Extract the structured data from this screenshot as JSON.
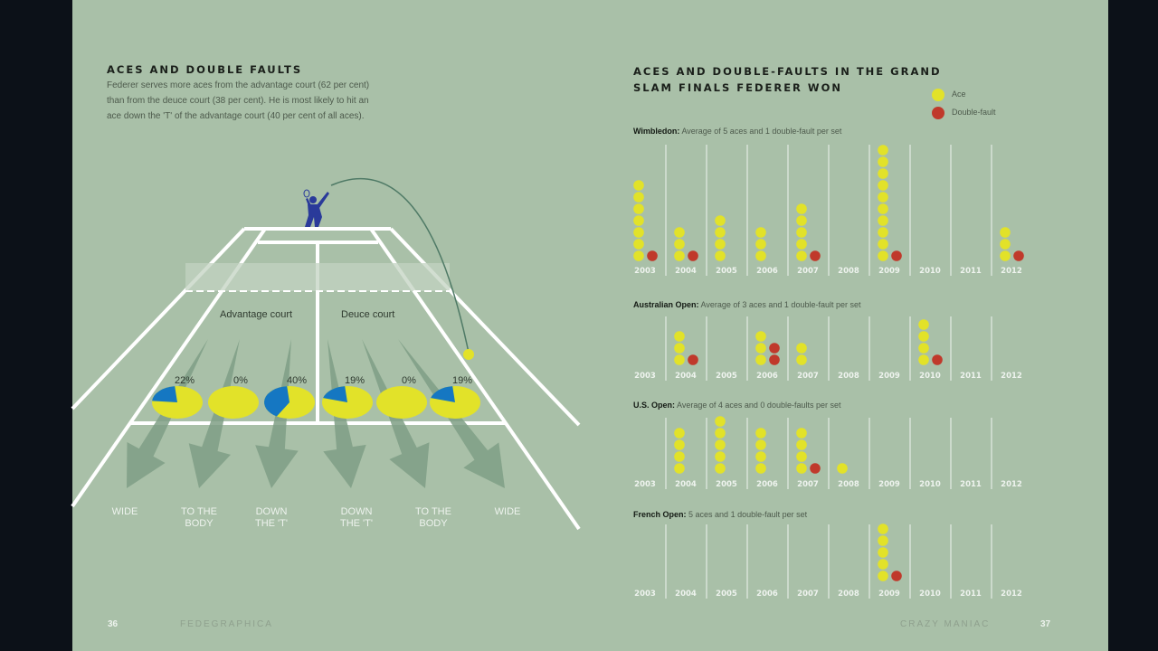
{
  "left": {
    "title": "ACES AND DOUBLE FAULTS",
    "body": "Federer serves more aces from the advantage court (62 per cent) than from the deuce court (38 per cent). He is most likely to hit an ace down the 'T' of the advantage court (40 per cent of all aces).",
    "court_labels": [
      "Advantage court",
      "Deuce court"
    ],
    "pies": [
      {
        "label": "22%",
        "value": 22
      },
      {
        "label": "0%",
        "value": 0
      },
      {
        "label": "40%",
        "value": 40
      },
      {
        "label": "19%",
        "value": 19
      },
      {
        "label": "0%",
        "value": 0
      },
      {
        "label": "19%",
        "value": 19
      }
    ],
    "directions": [
      [
        "WIDE",
        ""
      ],
      [
        "TO THE",
        "BODY"
      ],
      [
        "DOWN",
        "THE 'T'"
      ],
      [
        "DOWN",
        "THE 'T'"
      ],
      [
        "TO THE",
        "BODY"
      ],
      [
        "WIDE",
        ""
      ]
    ]
  },
  "right": {
    "title_line1": "ACES AND DOUBLE-FAULTS IN THE GRAND",
    "title_line2": "SLAM FINALS FEDERER WON",
    "legend": {
      "ace": "Ace",
      "df": "Double-fault"
    }
  },
  "colors": {
    "ace": "#e2e229",
    "df": "#c0392b",
    "pie_blue": "#1577c2",
    "bg": "#a9c0a8",
    "player": "#2a3a9a"
  },
  "chart_data": {
    "type": "dot-matrix",
    "years": [
      "2003",
      "2004",
      "2005",
      "2006",
      "2007",
      "2008",
      "2009",
      "2010",
      "2011",
      "2012"
    ],
    "series": [
      {
        "name": "Wimbledon:",
        "note": "Average of 5 aces and 1 double-fault per set",
        "aces": [
          7,
          3,
          4,
          3,
          5,
          0,
          10,
          0,
          0,
          3
        ],
        "double_faults": [
          1,
          1,
          0,
          0,
          1,
          0,
          1,
          0,
          0,
          1
        ]
      },
      {
        "name": "Australian Open:",
        "note": "Average of 3 aces and 1 double-fault per set",
        "aces": [
          0,
          3,
          0,
          3,
          2,
          0,
          0,
          4,
          0,
          0
        ],
        "double_faults": [
          0,
          1,
          0,
          2,
          0,
          0,
          0,
          1,
          0,
          0
        ]
      },
      {
        "name": "U.S. Open:",
        "note": "Average of 4 aces and 0 double-faults per set",
        "aces": [
          0,
          4,
          5,
          4,
          4,
          1,
          0,
          0,
          0,
          0
        ],
        "double_faults": [
          0,
          0,
          0,
          0,
          1,
          0,
          0,
          0,
          0,
          0
        ]
      },
      {
        "name": "French Open:",
        "note": "5 aces and 1 double-fault per set",
        "aces": [
          0,
          0,
          0,
          0,
          0,
          0,
          5,
          0,
          0,
          0
        ],
        "double_faults": [
          0,
          0,
          0,
          0,
          0,
          0,
          1,
          0,
          0,
          0
        ]
      }
    ]
  },
  "footer": {
    "left_page": "36",
    "left_running": "FEDEGRAPHICA",
    "right_running": "CRAZY MANIAC",
    "right_page": "37"
  }
}
